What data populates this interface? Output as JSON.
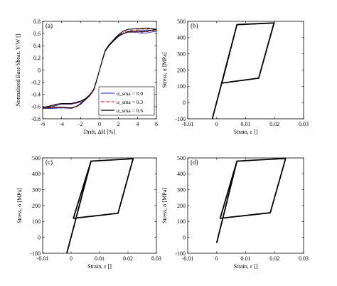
{
  "chart_data": [
    {
      "panel": "(a)",
      "type": "line",
      "xlabel": "Drift, ΔH [%]",
      "ylabel": "Normalized Base Shear, V/W []",
      "xlim": [
        -6,
        6
      ],
      "ylim": [
        -0.8,
        0.8
      ],
      "xticks": [
        -6,
        -4,
        -2,
        0,
        2,
        4,
        6
      ],
      "yticks": [
        -0.8,
        -0.6,
        -0.4,
        -0.2,
        0,
        0.2,
        0.4,
        0.6,
        0.8
      ],
      "legend_position": "bottom-right",
      "series": [
        {
          "name": "α_sma = 0.0",
          "color": "#3b49c2",
          "dash": "solid",
          "x": [
            -6,
            -5.5,
            -5,
            -4.5,
            -4,
            -3,
            -2,
            -1.5,
            -1,
            -0.6,
            -0.3,
            0,
            0.3,
            0.6,
            1,
            1.5,
            2,
            2.5,
            3,
            4,
            5,
            6,
            5,
            4.5,
            4,
            3,
            2,
            1.5,
            1,
            0.6,
            0.3,
            0,
            -0.3,
            -0.6,
            -1,
            -1.5,
            -2,
            -2.5,
            -3,
            -4,
            -5,
            -6
          ],
          "y": [
            -0.63,
            -0.62,
            -0.6,
            -0.58,
            -0.56,
            -0.56,
            -0.53,
            -0.49,
            -0.42,
            -0.33,
            -0.18,
            0,
            0.18,
            0.33,
            0.42,
            0.48,
            0.55,
            0.6,
            0.63,
            0.64,
            0.66,
            0.64,
            0.61,
            0.6,
            0.62,
            0.62,
            0.58,
            0.5,
            0.42,
            0.33,
            0.18,
            0,
            -0.18,
            -0.33,
            -0.42,
            -0.49,
            -0.55,
            -0.6,
            -0.63,
            -0.62,
            -0.63,
            -0.63
          ]
        },
        {
          "name": "α_sma = 0.3",
          "color": "#d22020",
          "dash": "dashdot",
          "x": [
            -6,
            -5.5,
            -5,
            -4.5,
            -4,
            -3,
            -2,
            -1.5,
            -1,
            -0.6,
            -0.3,
            0,
            0.3,
            0.6,
            1,
            1.5,
            2,
            2.5,
            3,
            4,
            5,
            6,
            5,
            4.5,
            4,
            3,
            2,
            1.5,
            1,
            0.6,
            0.3,
            0,
            -0.3,
            -0.6,
            -1,
            -1.5,
            -2,
            -2.5,
            -3,
            -4,
            -5,
            -6
          ],
          "y": [
            -0.62,
            -0.61,
            -0.59,
            -0.57,
            -0.55,
            -0.56,
            -0.52,
            -0.48,
            -0.41,
            -0.32,
            -0.17,
            0,
            0.17,
            0.32,
            0.41,
            0.49,
            0.56,
            0.62,
            0.65,
            0.66,
            0.68,
            0.66,
            0.63,
            0.62,
            0.63,
            0.62,
            0.57,
            0.49,
            0.41,
            0.32,
            0.17,
            0,
            -0.17,
            -0.32,
            -0.41,
            -0.49,
            -0.56,
            -0.61,
            -0.63,
            -0.62,
            -0.62,
            -0.62
          ]
        },
        {
          "name": "α_sma = 0.6",
          "color": "#000000",
          "dash": "solid",
          "x": [
            -6,
            -5.5,
            -5,
            -4.5,
            -4,
            -3,
            -2,
            -1.5,
            -1,
            -0.6,
            -0.3,
            0,
            0.3,
            0.6,
            1,
            1.5,
            2,
            2.5,
            3,
            4,
            5,
            6,
            5,
            4.5,
            4,
            3,
            2,
            1.5,
            1,
            0.6,
            0.3,
            0,
            -0.3,
            -0.6,
            -1,
            -1.5,
            -2,
            -2.5,
            -3,
            -4,
            -5,
            -6
          ],
          "y": [
            -0.61,
            -0.6,
            -0.58,
            -0.56,
            -0.55,
            -0.55,
            -0.51,
            -0.47,
            -0.4,
            -0.31,
            -0.16,
            0,
            0.16,
            0.31,
            0.41,
            0.5,
            0.58,
            0.64,
            0.67,
            0.68,
            0.69,
            0.67,
            0.64,
            0.63,
            0.64,
            0.63,
            0.56,
            0.48,
            0.4,
            0.31,
            0.16,
            0,
            -0.16,
            -0.31,
            -0.4,
            -0.48,
            -0.56,
            -0.6,
            -0.62,
            -0.61,
            -0.61,
            -0.61
          ]
        }
      ]
    },
    {
      "panel": "(b)",
      "type": "line",
      "xlabel": "Strain, ε []",
      "ylabel": "Stress, σ [MPa]",
      "xlim": [
        -0.01,
        0.03
      ],
      "ylim": [
        -100,
        500
      ],
      "xticks": [
        -0.01,
        0,
        0.01,
        0.02,
        0.03
      ],
      "yticks": [
        -100,
        0,
        100,
        200,
        300,
        400,
        500
      ],
      "series": [
        {
          "color": "#000000",
          "x": [
            -0.0015,
            0.007,
            0.0198,
            0.0145,
            0.0018,
            0.007
          ],
          "y": [
            -100,
            480,
            490,
            150,
            120,
            480
          ]
        }
      ]
    },
    {
      "panel": "(c)",
      "type": "line",
      "xlabel": "Strain, ε []",
      "ylabel": "Stress, σ [MPa]",
      "xlim": [
        -0.01,
        0.03
      ],
      "ylim": [
        -100,
        500
      ],
      "xticks": [
        -0.01,
        0,
        0.01,
        0.02,
        0.03
      ],
      "yticks": [
        -100,
        0,
        100,
        200,
        300,
        400,
        500
      ],
      "series": [
        {
          "color": "#000000",
          "x": [
            -0.0015,
            0.007,
            0.0218,
            0.0165,
            0.0008,
            0.007
          ],
          "y": [
            -100,
            480,
            495,
            152,
            120,
            480
          ]
        }
      ]
    },
    {
      "panel": "(d)",
      "type": "line",
      "xlabel": "Strain, ε []",
      "ylabel": "Stress, σ [MPa]",
      "xlim": [
        -0.01,
        0.03
      ],
      "ylim": [
        -100,
        500
      ],
      "xticks": [
        -0.01,
        0,
        0.01,
        0.02,
        0.03
      ],
      "yticks": [
        -100,
        0,
        100,
        200,
        300,
        400,
        500
      ],
      "series": [
        {
          "color": "#000000",
          "x": [
            0,
            0.007,
            0.0238,
            0.0185,
            0.0012,
            0.007
          ],
          "y": [
            -35,
            480,
            497,
            155,
            120,
            480
          ]
        }
      ]
    }
  ]
}
